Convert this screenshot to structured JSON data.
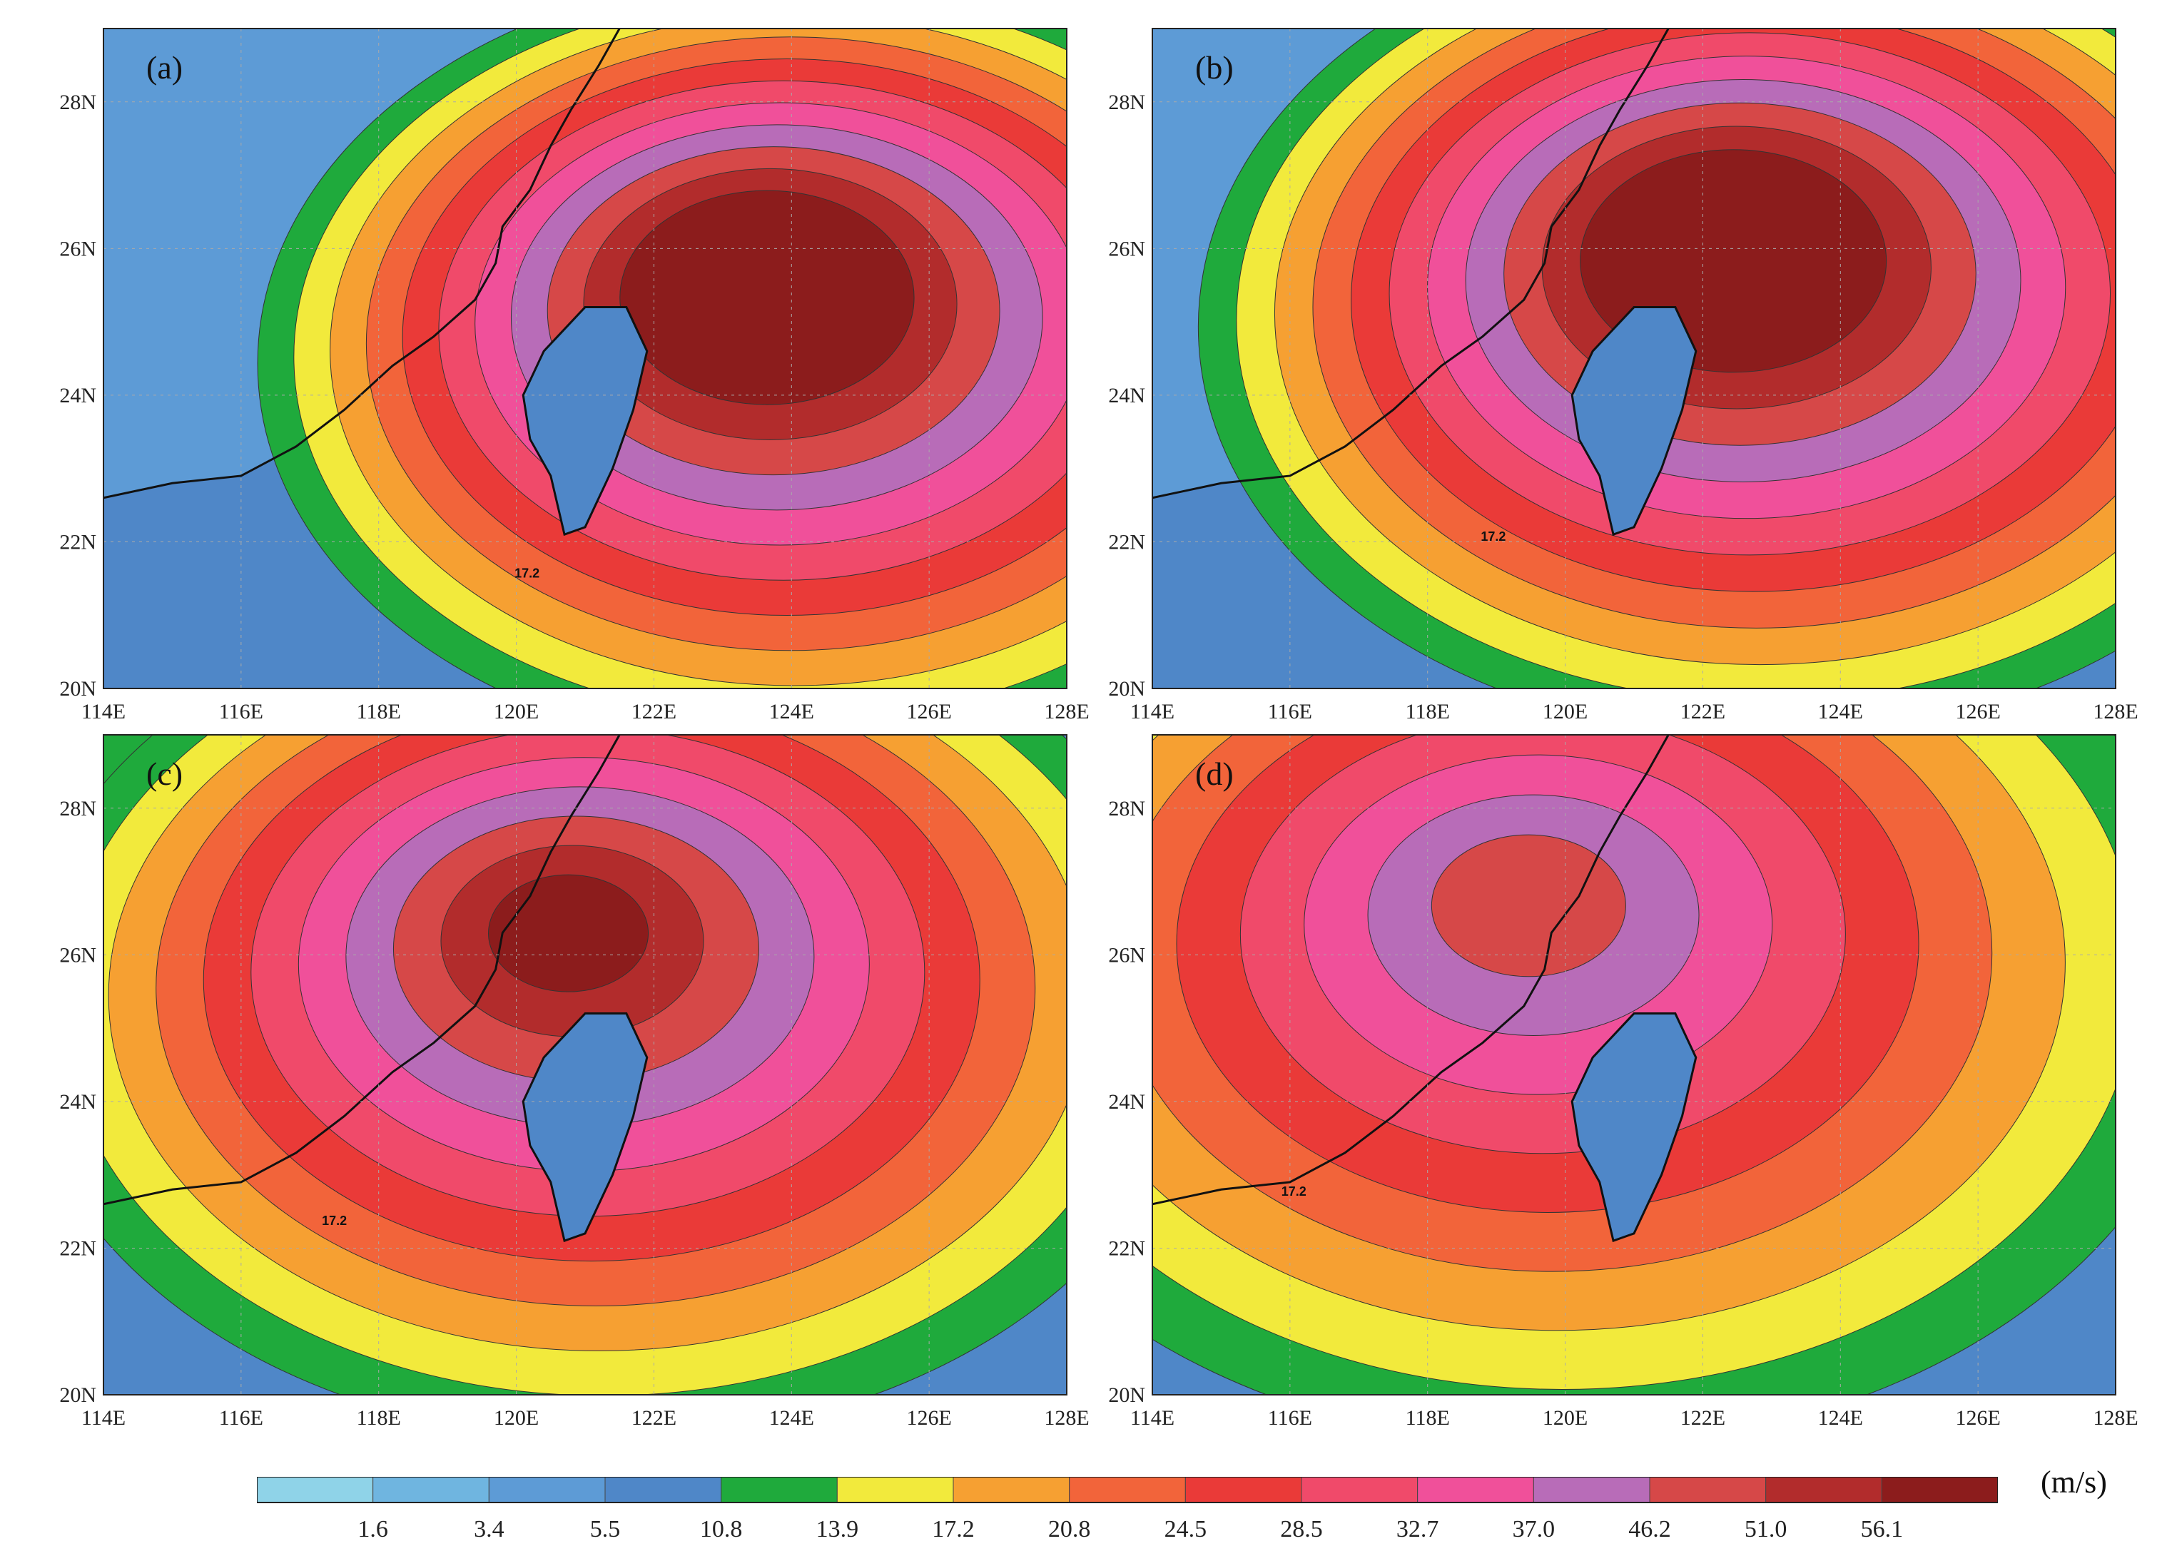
{
  "legend": {
    "levels": [
      "1.6",
      "3.4",
      "5.5",
      "10.8",
      "13.9",
      "17.2",
      "20.8",
      "24.5",
      "28.5",
      "32.7",
      "37.0",
      "46.2",
      "51.0",
      "56.1"
    ],
    "colors": [
      "#8fd3e8",
      "#6fb5e0",
      "#5d9bd6",
      "#4f87c8",
      "#1faa3c",
      "#f2ea3c",
      "#f6a032",
      "#f2643a",
      "#ea3a38",
      "#f04a6a",
      "#f0509a",
      "#b86cb8",
      "#d64848",
      "#b22c2c",
      "#8c1c1c"
    ],
    "unit": "(m/s)"
  },
  "axes": {
    "x_ticks": [
      "114E",
      "116E",
      "118E",
      "120E",
      "122E",
      "124E",
      "126E",
      "128E"
    ],
    "y_ticks": [
      "20N",
      "22N",
      "24N",
      "26N",
      "28N"
    ],
    "x_range": [
      114,
      128
    ],
    "y_range": [
      20,
      29
    ],
    "grid": true
  },
  "contour_label": "17.2",
  "panels": [
    {
      "label": "(a)",
      "center_lon": 123.5,
      "center_lat": 25.6,
      "intensity": 1.0,
      "spread": 1.0
    },
    {
      "label": "(b)",
      "center_lon": 122.3,
      "center_lat": 26.1,
      "intensity": 1.0,
      "spread": 1.05
    },
    {
      "label": "(c)",
      "center_lon": 120.7,
      "center_lat": 26.4,
      "intensity": 0.82,
      "spread": 1.1
    },
    {
      "label": "(d)",
      "center_lon": 119.4,
      "center_lat": 26.8,
      "intensity": 0.55,
      "spread": 1.2
    }
  ]
}
